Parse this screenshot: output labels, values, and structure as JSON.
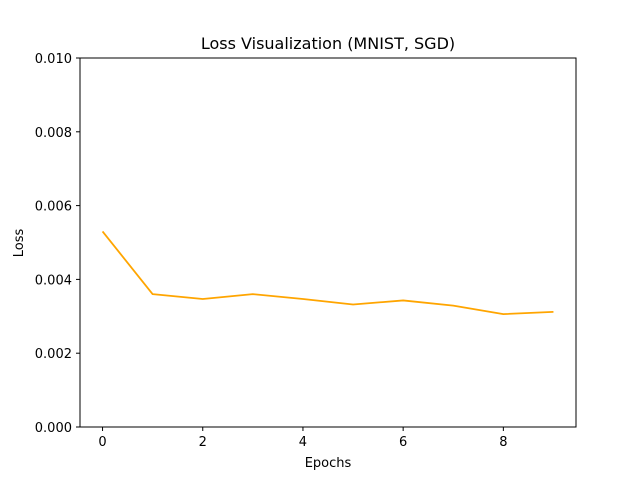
{
  "chart_data": {
    "type": "line",
    "title": "Loss Visualization (MNIST, SGD)",
    "xlabel": "Epochs",
    "ylabel": "Loss",
    "xlim": [
      -0.45,
      9.45
    ],
    "ylim": [
      0,
      0.01
    ],
    "xticks": [
      0,
      2,
      4,
      6,
      8
    ],
    "xtick_labels": [
      "0",
      "2",
      "4",
      "6",
      "8"
    ],
    "yticks": [
      0,
      0.002,
      0.004,
      0.006,
      0.008,
      0.01
    ],
    "ytick_labels": [
      "0.000",
      "0.002",
      "0.004",
      "0.006",
      "0.008",
      "0.010"
    ],
    "grid": false,
    "series": [
      {
        "color": "#ffa500",
        "x": [
          0,
          1,
          2,
          3,
          4,
          5,
          6,
          7,
          8,
          9
        ],
        "y": [
          0.0053,
          0.0036,
          0.00347,
          0.0036,
          0.00347,
          0.00332,
          0.00343,
          0.00329,
          0.00306,
          0.00312
        ]
      }
    ]
  }
}
